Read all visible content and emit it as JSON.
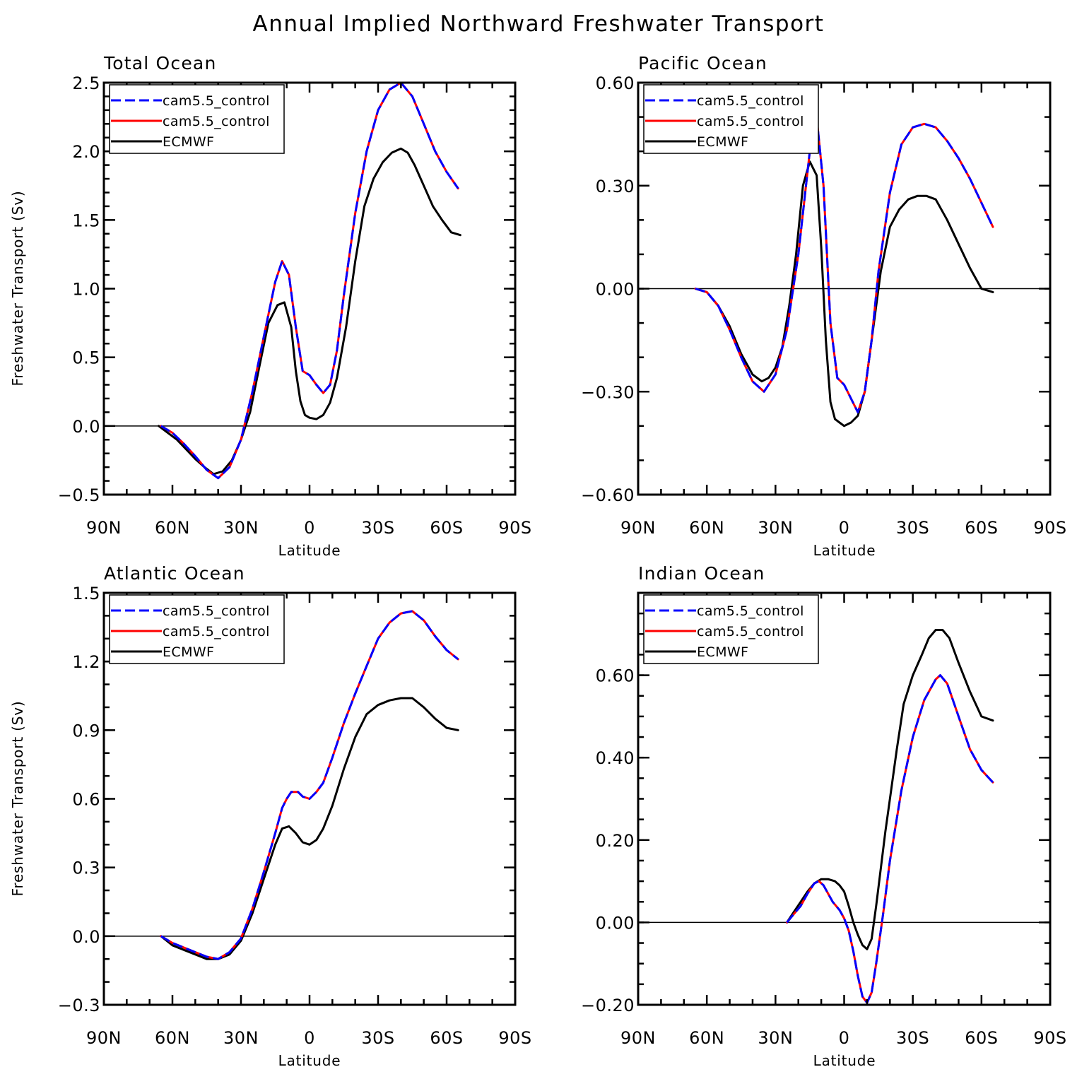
{
  "figure_title": "Annual Implied Northward Freshwater Transport",
  "colors": {
    "model_dashed": "#0000ff",
    "model_solid": "#ff0000",
    "obs": "#000000",
    "zero_line": "#000000"
  },
  "chart_data": [
    {
      "type": "line",
      "title": "Total Ocean",
      "xlabel": "Latitude",
      "ylabel": "Freshwater Transport (Sv)",
      "xlim": [
        90,
        -90
      ],
      "ylim": [
        -0.5,
        2.5
      ],
      "x_ticks": [
        {
          "v": 90,
          "label": "90N"
        },
        {
          "v": 60,
          "label": "60N"
        },
        {
          "v": 30,
          "label": "30N"
        },
        {
          "v": 0,
          "label": "0"
        },
        {
          "v": -30,
          "label": "30S"
        },
        {
          "v": -60,
          "label": "60S"
        },
        {
          "v": -90,
          "label": "90S"
        }
      ],
      "y_ticks": [
        {
          "v": -0.5,
          "label": "−0.5"
        },
        {
          "v": 0,
          "label": "0.0"
        },
        {
          "v": 0.5,
          "label": "0.5"
        },
        {
          "v": 1.0,
          "label": "1.0"
        },
        {
          "v": 1.5,
          "label": "1.5"
        },
        {
          "v": 2.0,
          "label": "2.0"
        },
        {
          "v": 2.5,
          "label": "2.5"
        }
      ],
      "y_minor_step": 0.1,
      "series": [
        {
          "name": "cam5.5_control",
          "style": "dashed",
          "x": [
            65,
            60,
            55,
            50,
            45,
            40,
            35,
            30,
            25,
            20,
            15,
            12,
            9,
            6,
            3,
            0,
            -3,
            -6,
            -9,
            -12,
            -15,
            -20,
            -25,
            -30,
            -35,
            -40,
            -45,
            -50,
            -55,
            -60,
            -65
          ],
          "y": [
            0.0,
            -0.05,
            -0.13,
            -0.22,
            -0.32,
            -0.38,
            -0.3,
            -0.1,
            0.25,
            0.65,
            1.05,
            1.2,
            1.1,
            0.72,
            0.4,
            0.37,
            0.3,
            0.24,
            0.3,
            0.55,
            0.95,
            1.55,
            2.0,
            2.3,
            2.45,
            2.5,
            2.4,
            2.2,
            2.0,
            1.85,
            1.73
          ]
        },
        {
          "name": "cam5.5_control",
          "style": "solid",
          "x": [
            65,
            60,
            55,
            50,
            45,
            40,
            35,
            30,
            25,
            20,
            15,
            12,
            9,
            6,
            3,
            0,
            -3,
            -6,
            -9,
            -12,
            -15,
            -20,
            -25,
            -30,
            -35,
            -40,
            -45,
            -50,
            -55,
            -60,
            -65
          ],
          "y": [
            0.0,
            -0.05,
            -0.13,
            -0.22,
            -0.32,
            -0.38,
            -0.3,
            -0.1,
            0.25,
            0.65,
            1.05,
            1.2,
            1.1,
            0.72,
            0.4,
            0.37,
            0.3,
            0.24,
            0.3,
            0.55,
            0.95,
            1.55,
            2.0,
            2.3,
            2.45,
            2.5,
            2.4,
            2.2,
            2.0,
            1.85,
            1.73
          ]
        },
        {
          "name": "ECMWF",
          "style": "solid",
          "x": [
            66,
            62,
            58,
            54,
            50,
            46,
            42,
            38,
            34,
            30,
            26,
            22,
            18,
            14,
            11,
            8,
            6,
            4,
            2,
            0,
            -3,
            -6,
            -9,
            -12,
            -16,
            -20,
            -24,
            -28,
            -32,
            -36,
            -40,
            -43,
            -46,
            -50,
            -54,
            -58,
            -62,
            -66
          ],
          "y": [
            0.0,
            -0.05,
            -0.1,
            -0.17,
            -0.24,
            -0.3,
            -0.35,
            -0.33,
            -0.25,
            -0.1,
            0.1,
            0.43,
            0.75,
            0.88,
            0.9,
            0.72,
            0.4,
            0.18,
            0.08,
            0.06,
            0.05,
            0.08,
            0.17,
            0.35,
            0.72,
            1.2,
            1.6,
            1.8,
            1.92,
            1.99,
            2.02,
            1.99,
            1.9,
            1.75,
            1.6,
            1.5,
            1.41,
            1.39
          ]
        }
      ]
    },
    {
      "type": "line",
      "title": "Pacific Ocean",
      "xlabel": "Latitude",
      "ylabel": "",
      "xlim": [
        90,
        -90
      ],
      "ylim": [
        -0.6,
        0.6
      ],
      "x_ticks": [
        {
          "v": 90,
          "label": "90N"
        },
        {
          "v": 60,
          "label": "60N"
        },
        {
          "v": 30,
          "label": "30N"
        },
        {
          "v": 0,
          "label": "0"
        },
        {
          "v": -30,
          "label": "30S"
        },
        {
          "v": -60,
          "label": "60S"
        },
        {
          "v": -90,
          "label": "90S"
        }
      ],
      "y_ticks": [
        {
          "v": -0.6,
          "label": "−0.60"
        },
        {
          "v": -0.3,
          "label": "−0.30"
        },
        {
          "v": 0,
          "label": "0.00"
        },
        {
          "v": 0.3,
          "label": "0.30"
        },
        {
          "v": 0.6,
          "label": "0.60"
        }
      ],
      "y_minor_step": 0.1,
      "series": [
        {
          "name": "cam5.5_control",
          "style": "dashed",
          "x": [
            65,
            60,
            55,
            50,
            45,
            40,
            35,
            30,
            25,
            20,
            15,
            12,
            9,
            6,
            3,
            0,
            -3,
            -6,
            -9,
            -12,
            -15,
            -20,
            -25,
            -30,
            -35,
            -40,
            -45,
            -50,
            -55,
            -60,
            -65
          ],
          "y": [
            0.0,
            -0.01,
            -0.05,
            -0.12,
            -0.2,
            -0.27,
            -0.3,
            -0.25,
            -0.12,
            0.1,
            0.4,
            0.5,
            0.3,
            -0.1,
            -0.26,
            -0.28,
            -0.32,
            -0.36,
            -0.3,
            -0.15,
            0.05,
            0.28,
            0.42,
            0.47,
            0.48,
            0.47,
            0.43,
            0.38,
            0.32,
            0.25,
            0.18
          ]
        },
        {
          "name": "cam5.5_control",
          "style": "solid",
          "x": [
            65,
            60,
            55,
            50,
            45,
            40,
            35,
            30,
            25,
            20,
            15,
            12,
            9,
            6,
            3,
            0,
            -3,
            -6,
            -9,
            -12,
            -15,
            -20,
            -25,
            -30,
            -35,
            -40,
            -45,
            -50,
            -55,
            -60,
            -65
          ],
          "y": [
            0.0,
            -0.01,
            -0.05,
            -0.12,
            -0.2,
            -0.27,
            -0.3,
            -0.25,
            -0.12,
            0.1,
            0.4,
            0.5,
            0.3,
            -0.1,
            -0.26,
            -0.28,
            -0.32,
            -0.36,
            -0.3,
            -0.15,
            0.05,
            0.28,
            0.42,
            0.47,
            0.48,
            0.47,
            0.43,
            0.38,
            0.32,
            0.25,
            0.18
          ]
        },
        {
          "name": "ECMWF",
          "style": "solid",
          "x": [
            65,
            60,
            55,
            50,
            45,
            40,
            36,
            33,
            30,
            27,
            24,
            21,
            18,
            15,
            12,
            10,
            8,
            6,
            4,
            2,
            0,
            -3,
            -6,
            -9,
            -12,
            -16,
            -20,
            -24,
            -28,
            -32,
            -36,
            -40,
            -45,
            -50,
            -55,
            -60,
            -65
          ],
          "y": [
            0.0,
            -0.01,
            -0.05,
            -0.11,
            -0.19,
            -0.25,
            -0.27,
            -0.26,
            -0.23,
            -0.17,
            -0.05,
            0.1,
            0.3,
            0.37,
            0.33,
            0.12,
            -0.15,
            -0.33,
            -0.38,
            -0.39,
            -0.4,
            -0.39,
            -0.37,
            -0.3,
            -0.15,
            0.05,
            0.18,
            0.23,
            0.26,
            0.27,
            0.27,
            0.26,
            0.2,
            0.13,
            0.06,
            0.0,
            -0.01
          ]
        }
      ]
    },
    {
      "type": "line",
      "title": "Atlantic Ocean",
      "xlabel": "Latitude",
      "ylabel": "Freshwater Transport (Sv)",
      "xlim": [
        90,
        -90
      ],
      "ylim": [
        -0.3,
        1.5
      ],
      "x_ticks": [
        {
          "v": 90,
          "label": "90N"
        },
        {
          "v": 60,
          "label": "60N"
        },
        {
          "v": 30,
          "label": "30N"
        },
        {
          "v": 0,
          "label": "0"
        },
        {
          "v": -30,
          "label": "30S"
        },
        {
          "v": -60,
          "label": "60S"
        },
        {
          "v": -90,
          "label": "90S"
        }
      ],
      "y_ticks": [
        {
          "v": -0.3,
          "label": "−0.3"
        },
        {
          "v": 0,
          "label": "0.0"
        },
        {
          "v": 0.3,
          "label": "0.3"
        },
        {
          "v": 0.6,
          "label": "0.6"
        },
        {
          "v": 0.9,
          "label": "0.9"
        },
        {
          "v": 1.2,
          "label": "1.2"
        },
        {
          "v": 1.5,
          "label": "1.5"
        }
      ],
      "y_minor_step": 0.1,
      "series": [
        {
          "name": "cam5.5_control",
          "style": "dashed",
          "x": [
            65,
            60,
            55,
            50,
            45,
            40,
            35,
            30,
            25,
            20,
            15,
            12,
            10,
            8,
            5,
            3,
            0,
            -3,
            -6,
            -10,
            -15,
            -20,
            -25,
            -30,
            -35,
            -40,
            -45,
            -50,
            -55,
            -60,
            -65
          ],
          "y": [
            0.0,
            -0.03,
            -0.05,
            -0.07,
            -0.09,
            -0.1,
            -0.07,
            -0.01,
            0.12,
            0.28,
            0.45,
            0.56,
            0.6,
            0.63,
            0.63,
            0.61,
            0.6,
            0.63,
            0.67,
            0.78,
            0.93,
            1.06,
            1.18,
            1.3,
            1.37,
            1.41,
            1.42,
            1.38,
            1.31,
            1.25,
            1.21
          ]
        },
        {
          "name": "cam5.5_control",
          "style": "solid",
          "x": [
            65,
            60,
            55,
            50,
            45,
            40,
            35,
            30,
            25,
            20,
            15,
            12,
            10,
            8,
            5,
            3,
            0,
            -3,
            -6,
            -10,
            -15,
            -20,
            -25,
            -30,
            -35,
            -40,
            -45,
            -50,
            -55,
            -60,
            -65
          ],
          "y": [
            0.0,
            -0.03,
            -0.05,
            -0.07,
            -0.09,
            -0.1,
            -0.07,
            -0.01,
            0.12,
            0.28,
            0.45,
            0.56,
            0.6,
            0.63,
            0.63,
            0.61,
            0.6,
            0.63,
            0.67,
            0.78,
            0.93,
            1.06,
            1.18,
            1.3,
            1.37,
            1.41,
            1.42,
            1.38,
            1.31,
            1.25,
            1.21
          ]
        },
        {
          "name": "ECMWF",
          "style": "solid",
          "x": [
            65,
            60,
            55,
            50,
            45,
            40,
            35,
            30,
            25,
            20,
            15,
            12,
            9,
            6,
            3,
            0,
            -3,
            -6,
            -10,
            -15,
            -20,
            -25,
            -30,
            -35,
            -40,
            -45,
            -50,
            -55,
            -60,
            -65
          ],
          "y": [
            0.0,
            -0.04,
            -0.06,
            -0.08,
            -0.1,
            -0.1,
            -0.08,
            -0.02,
            0.1,
            0.25,
            0.4,
            0.47,
            0.48,
            0.45,
            0.41,
            0.4,
            0.42,
            0.47,
            0.57,
            0.73,
            0.87,
            0.97,
            1.01,
            1.03,
            1.04,
            1.04,
            1.0,
            0.95,
            0.91,
            0.9
          ]
        }
      ]
    },
    {
      "type": "line",
      "title": "Indian Ocean",
      "xlabel": "Latitude",
      "ylabel": "",
      "xlim": [
        90,
        -90
      ],
      "ylim": [
        -0.2,
        0.8
      ],
      "x_ticks": [
        {
          "v": 90,
          "label": "90N"
        },
        {
          "v": 60,
          "label": "60N"
        },
        {
          "v": 30,
          "label": "30N"
        },
        {
          "v": 0,
          "label": "0"
        },
        {
          "v": -30,
          "label": "30S"
        },
        {
          "v": -60,
          "label": "60S"
        },
        {
          "v": -90,
          "label": "90S"
        }
      ],
      "y_ticks": [
        {
          "v": -0.2,
          "label": "−0.20"
        },
        {
          "v": 0,
          "label": "0.00"
        },
        {
          "v": 0.2,
          "label": "0.20"
        },
        {
          "v": 0.4,
          "label": "0.40"
        },
        {
          "v": 0.6,
          "label": "0.60"
        }
      ],
      "y_minor_step": 0.05,
      "series": [
        {
          "name": "cam5.5_control",
          "style": "dashed",
          "x": [
            25,
            22,
            19,
            16,
            13,
            11,
            9,
            7,
            5,
            2,
            0,
            -2,
            -4,
            -6,
            -8,
            -10,
            -12,
            -14,
            -17,
            -20,
            -25,
            -30,
            -35,
            -40,
            -42,
            -45,
            -50,
            -55,
            -60,
            -65
          ],
          "y": [
            0.0,
            0.02,
            0.04,
            0.07,
            0.095,
            0.1,
            0.09,
            0.07,
            0.05,
            0.03,
            0.01,
            -0.02,
            -0.07,
            -0.13,
            -0.18,
            -0.195,
            -0.17,
            -0.1,
            0.02,
            0.15,
            0.32,
            0.45,
            0.54,
            0.59,
            0.6,
            0.58,
            0.5,
            0.42,
            0.37,
            0.34
          ]
        },
        {
          "name": "cam5.5_control",
          "style": "solid",
          "x": [
            25,
            22,
            19,
            16,
            13,
            11,
            9,
            7,
            5,
            2,
            0,
            -2,
            -4,
            -6,
            -8,
            -10,
            -12,
            -14,
            -17,
            -20,
            -25,
            -30,
            -35,
            -40,
            -42,
            -45,
            -50,
            -55,
            -60,
            -65
          ],
          "y": [
            0.0,
            0.02,
            0.04,
            0.07,
            0.095,
            0.1,
            0.09,
            0.07,
            0.05,
            0.03,
            0.01,
            -0.02,
            -0.07,
            -0.13,
            -0.18,
            -0.195,
            -0.17,
            -0.1,
            0.02,
            0.15,
            0.32,
            0.45,
            0.54,
            0.59,
            0.6,
            0.58,
            0.5,
            0.42,
            0.37,
            0.34
          ]
        },
        {
          "name": "ECMWF",
          "style": "solid",
          "x": [
            25,
            22,
            19,
            16,
            13,
            10,
            7,
            4,
            2,
            0,
            -2,
            -4,
            -6,
            -8,
            -10,
            -12,
            -14,
            -16,
            -18,
            -20,
            -23,
            -26,
            -30,
            -34,
            -37,
            -40,
            -43,
            -46,
            -50,
            -55,
            -60,
            -65
          ],
          "y": [
            0.0,
            0.025,
            0.05,
            0.075,
            0.095,
            0.105,
            0.105,
            0.1,
            0.09,
            0.075,
            0.04,
            0.0,
            -0.03,
            -0.055,
            -0.065,
            -0.04,
            0.04,
            0.13,
            0.22,
            0.3,
            0.42,
            0.53,
            0.6,
            0.65,
            0.69,
            0.71,
            0.71,
            0.69,
            0.63,
            0.56,
            0.5,
            0.49
          ]
        }
      ]
    }
  ]
}
